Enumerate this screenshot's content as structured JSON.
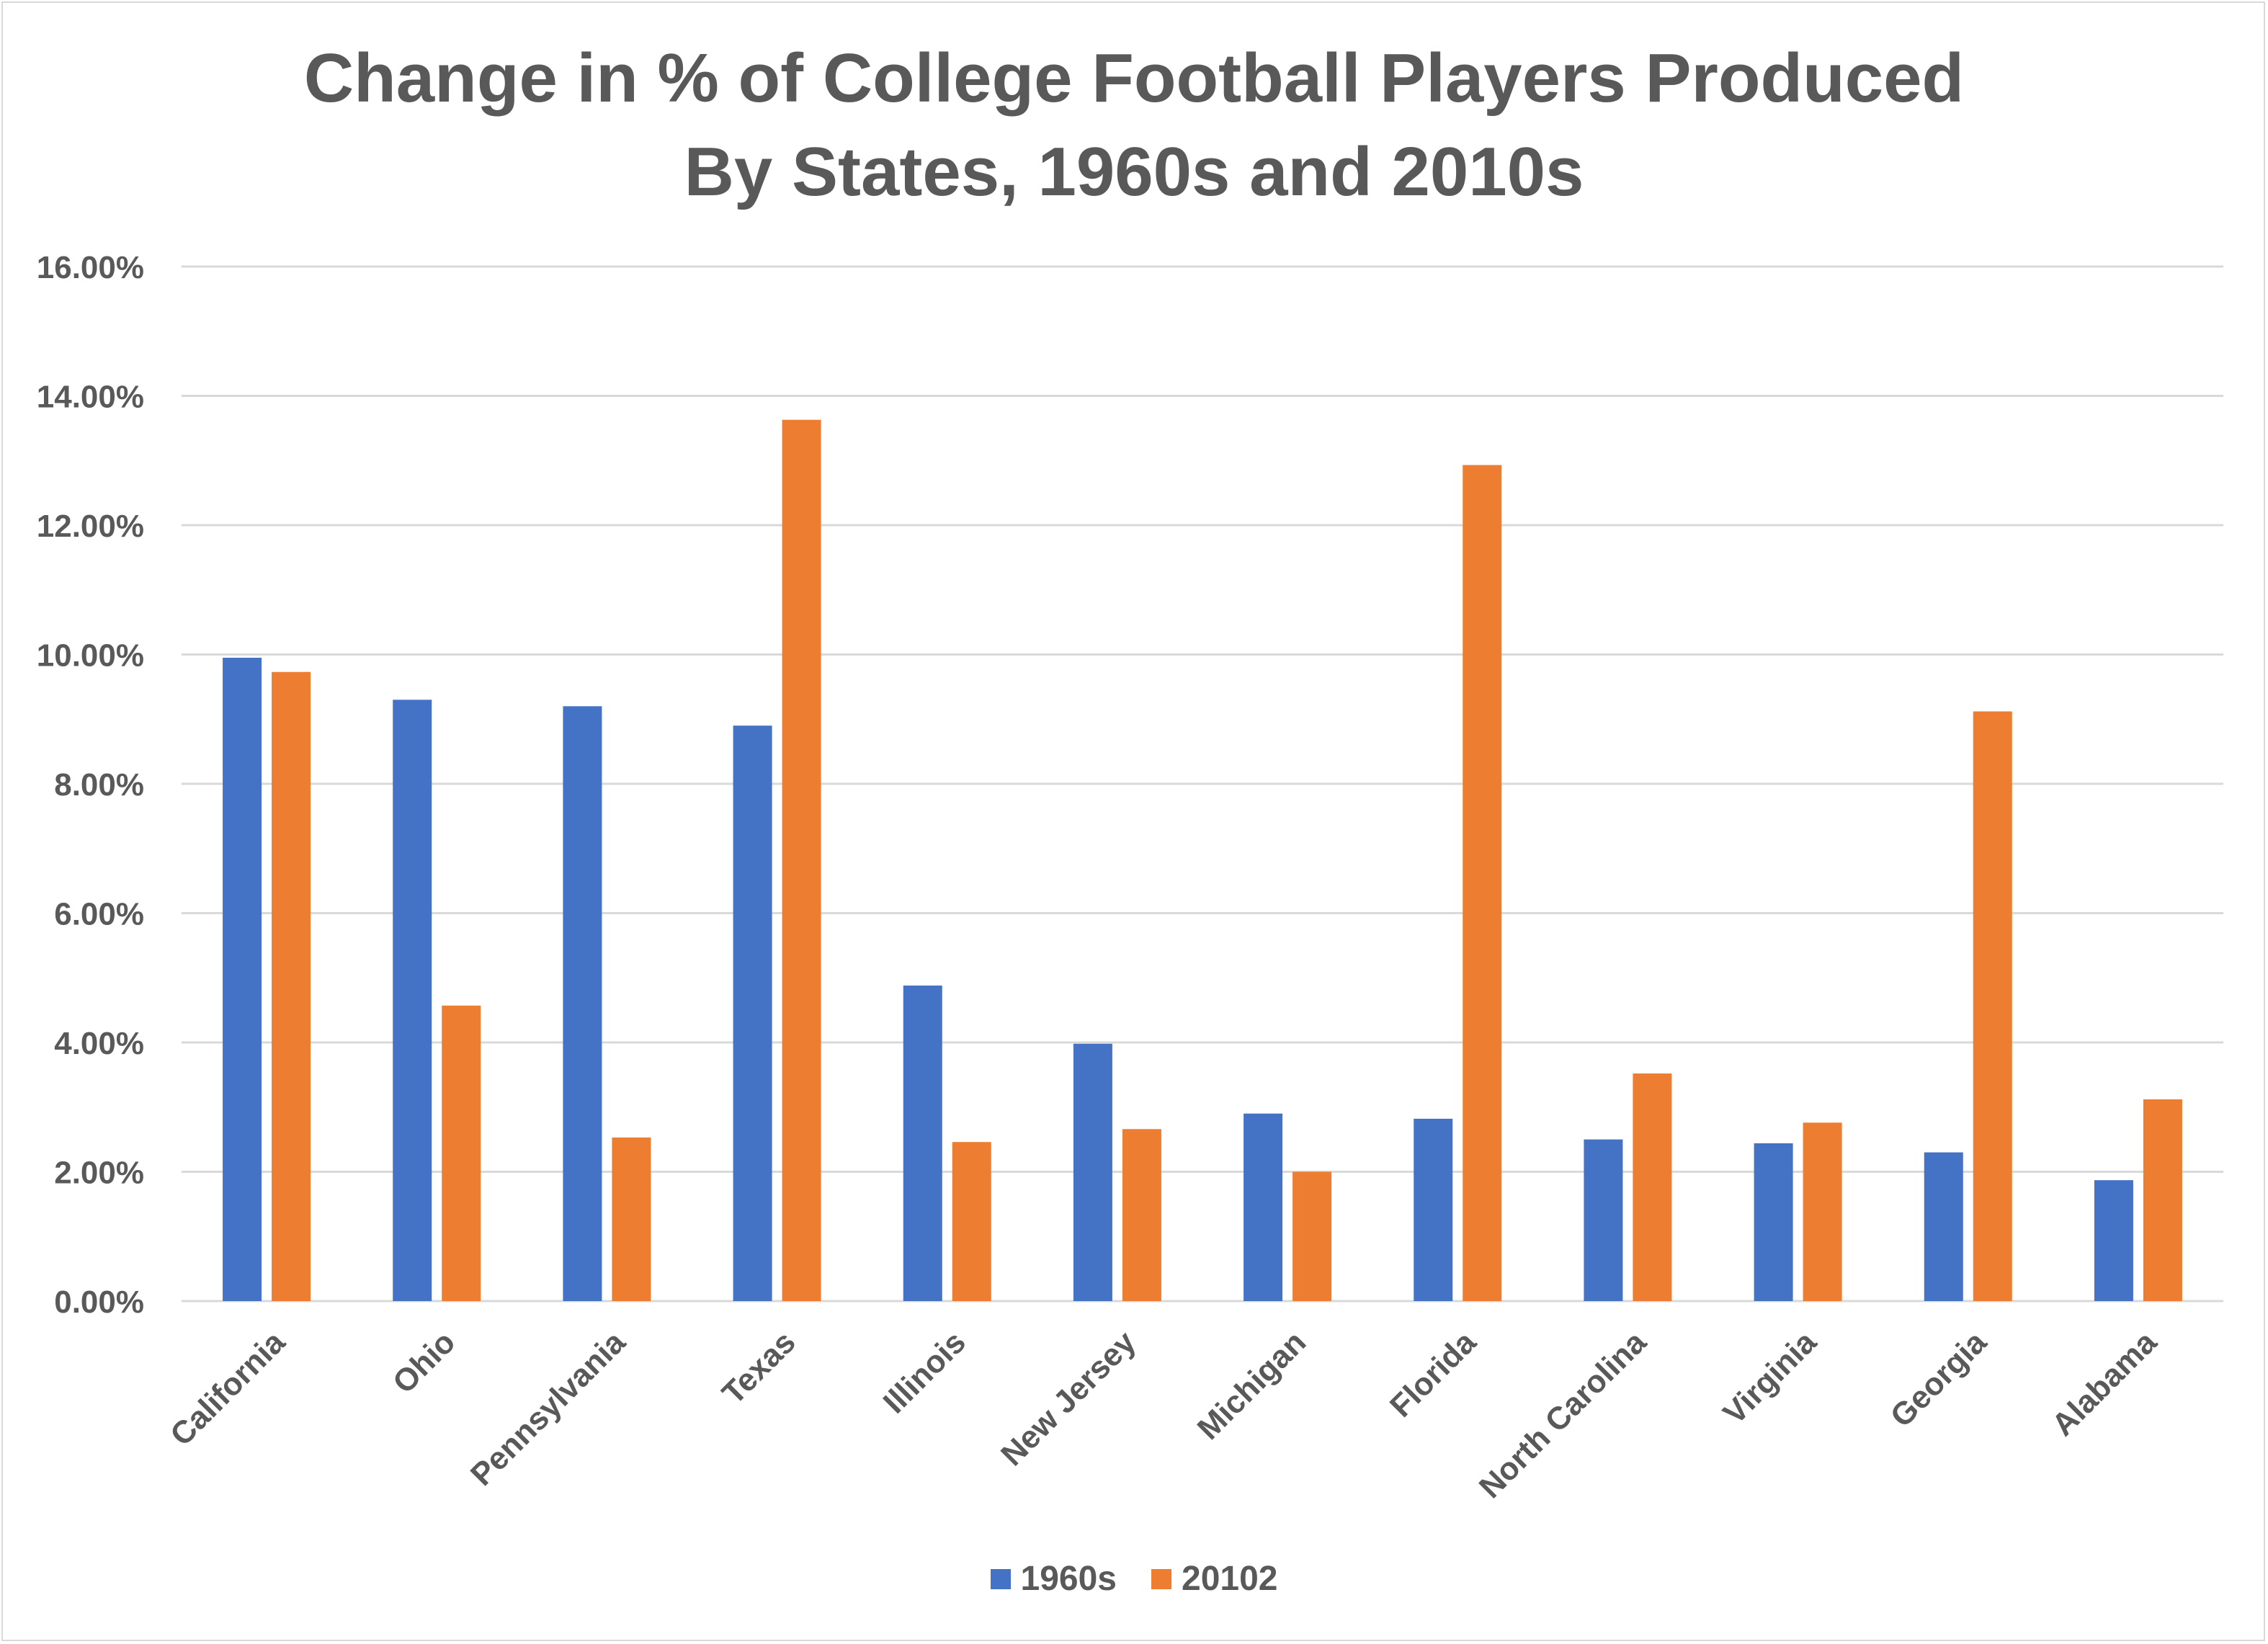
{
  "chart_data": {
    "type": "bar",
    "title_lines": [
      "Change in % of College Football Players Produced",
      "By States, 1960s and 2010s"
    ],
    "categories": [
      "California",
      "Ohio",
      "Pennsylvania",
      "Texas",
      "Illinois",
      "New Jersey",
      "Michigan",
      "Florida",
      "North Carolina",
      "Virginia",
      "Georgia",
      "Alabama"
    ],
    "series": [
      {
        "name": "1960s",
        "color": "#4472c4",
        "values": [
          9.95,
          9.3,
          9.2,
          8.9,
          4.88,
          3.98,
          2.9,
          2.82,
          2.5,
          2.44,
          2.3,
          1.87
        ]
      },
      {
        "name": "20102",
        "color": "#ed7d31",
        "values": [
          9.73,
          4.57,
          2.53,
          13.63,
          2.46,
          2.66,
          2.0,
          12.93,
          3.52,
          2.76,
          9.12,
          3.12
        ]
      }
    ],
    "y_ticks": [
      "0.00%",
      "2.00%",
      "4.00%",
      "6.00%",
      "8.00%",
      "10.00%",
      "12.00%",
      "14.00%",
      "16.00%"
    ],
    "ylim": [
      0,
      16
    ],
    "y_unit": "%",
    "grid": true,
    "legend_position": "bottom",
    "xlabel": "",
    "ylabel": ""
  }
}
